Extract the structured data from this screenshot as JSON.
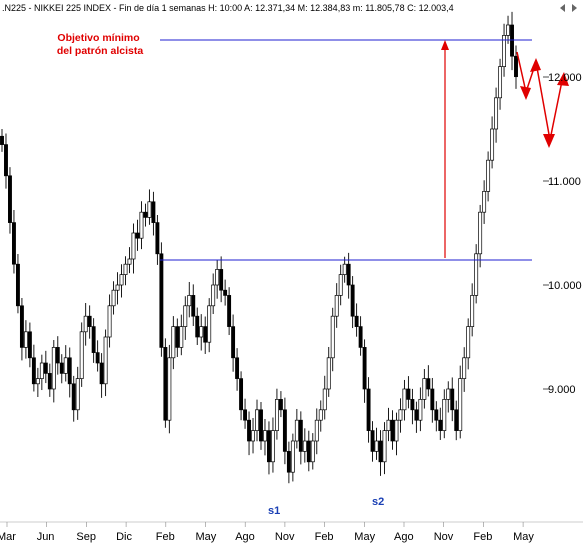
{
  "header": {
    "text": ".N225 - NIKKEI 225 INDEX - Fin de día 1 semanas H: 10:00 A: 12.371,34 M: 12.384,83 m: 11.805,78 C: 12.003,4"
  },
  "chart_data": {
    "type": "candlestick",
    "title": ".N225 - NIKKEI 225 INDEX - Fin de día 1 semanas",
    "y_ticks": [
      {
        "value": 9000,
        "label": "9.000"
      },
      {
        "value": 10000,
        "label": "10.000"
      },
      {
        "value": 11000,
        "label": "11.000"
      },
      {
        "value": 12000,
        "label": "12.000"
      }
    ],
    "x_ticks": [
      "Mar",
      "Jun",
      "Sep",
      "Dic",
      "Feb",
      "May",
      "Ago",
      "Nov",
      "Feb",
      "May",
      "Ago",
      "Nov",
      "Feb",
      "May"
    ],
    "ylim": [
      7700,
      12950
    ],
    "resistance_levels": [
      10200,
      12720
    ],
    "annotations": {
      "target": "Objetivo mínimo\ndel patrón alcista",
      "s1": "s1",
      "s2": "s2"
    },
    "colors": {
      "line": "#1f1fd0",
      "arrow": "#e00000",
      "candle": "#000000",
      "up": "#ffffff"
    },
    "closes": [
      11350,
      11050,
      10600,
      10200,
      9800,
      9400,
      9550,
      9300,
      9050,
      9100,
      9250,
      9150,
      9000,
      9400,
      9250,
      9150,
      9300,
      9050,
      8800,
      9100,
      9550,
      9700,
      9600,
      9350,
      9250,
      9050,
      9500,
      9800,
      9950,
      10000,
      10100,
      10200,
      10250,
      10500,
      10450,
      10700,
      10650,
      10800,
      10600,
      10300,
      9400,
      8700,
      9300,
      9600,
      9400,
      9600,
      9800,
      9900,
      9700,
      9500,
      9600,
      9450,
      9800,
      10000,
      10150,
      9950,
      9900,
      9600,
      9300,
      9100,
      8800,
      8700,
      8500,
      8600,
      8800,
      8500,
      8600,
      8300,
      8600,
      8900,
      8800,
      8400,
      8200,
      8500,
      8700,
      8400,
      8500,
      8300,
      8500,
      8700,
      8800,
      9000,
      9300,
      9700,
      9900,
      10100,
      10200,
      10000,
      9700,
      9600,
      9400,
      9000,
      8600,
      8400,
      8500,
      8300,
      8600,
      8700,
      8500,
      8700,
      8800,
      9000,
      8900,
      8800,
      8700,
      8900,
      9100,
      9000,
      8800,
      8700,
      8600,
      8900,
      9000,
      8800,
      8600,
      9100,
      9300,
      9600,
      9900,
      10300,
      10700,
      10900,
      11200,
      11500,
      11800,
      12100,
      12400,
      12500,
      12200,
      12003
    ]
  }
}
